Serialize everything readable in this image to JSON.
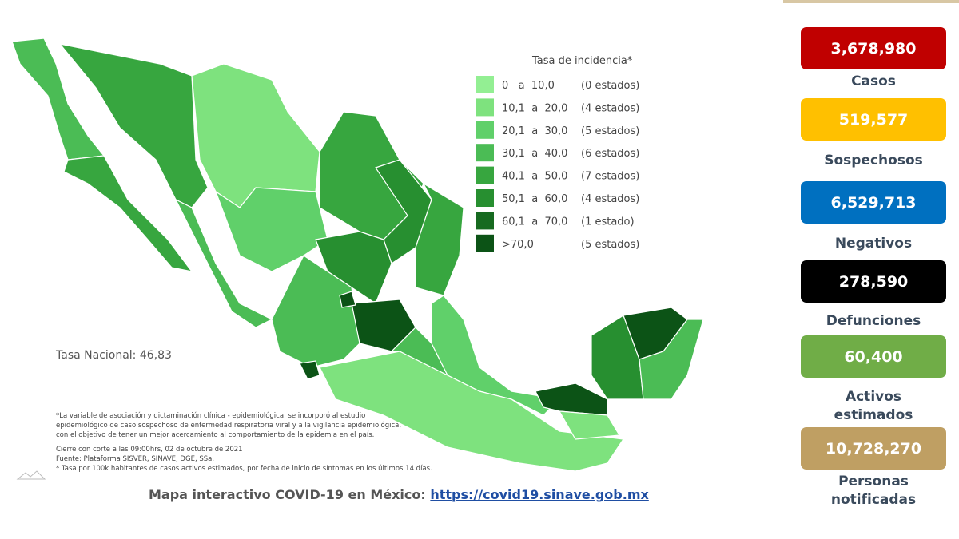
{
  "map": {
    "legend": {
      "title": "Tasa de incidencia*",
      "items": [
        {
          "range": "0   a  10,0",
          "count": "(0 estados)",
          "color": "#93ef93"
        },
        {
          "range": "10,1  a  20,0",
          "count": "(4 estados)",
          "color": "#7ee27e"
        },
        {
          "range": "20,1  a  30,0",
          "count": "(5 estados)",
          "color": "#60d06a"
        },
        {
          "range": "30,1  a  40,0",
          "count": "(6 estados)",
          "color": "#4bbc55"
        },
        {
          "range": "40,1  a  50,0",
          "count": "(7 estados)",
          "color": "#37a63f"
        },
        {
          "range": "50,1  a  60,0",
          "count": "(4 estados)",
          "color": "#278f30"
        },
        {
          "range": "60,1  a  70,0",
          "count": "(1 estado)",
          "color": "#176a20"
        },
        {
          "range": ">70,0",
          "count": "(5 estados)",
          "color": "#0c5316"
        }
      ]
    },
    "national_rate": "Tasa Nacional: 46,83",
    "notes": [
      "*La variable de asociación y dictaminación clínica - epidemiológica, se incorporó al estudio",
      "epidemiológico de caso sospechoso de enfermedad respiratoria viral y a la vigilancia epidemiológica,",
      "con el objetivo de tener un mejor acercamiento al comportamiento de la epidemia en el país.",
      "Cierre con corte a las 09:00hrs, 02 de octubre de 2021",
      "Fuente: Plataforma SISVER, SINAVE, DGE, SSa.",
      "* Tasa por 100k habitantes de casos activos estimados, por fecha de inicio de síntomas en los últimos 14 días."
    ],
    "footer": {
      "text": "Mapa interactivo COVID-19 en México:",
      "link": "https://covid19.sinave.gob.mx"
    }
  },
  "cards": [
    {
      "value": "3,678,980",
      "label": [
        "Casos"
      ],
      "color": "#c00000",
      "text_color": "#ffffff"
    },
    {
      "value": "519,577",
      "label": [
        "Sospechosos"
      ],
      "color": "#ffc000",
      "text_color": "#ffffff"
    },
    {
      "value": "6,529,713",
      "label": [
        "Negativos"
      ],
      "color": "#0070c0",
      "text_color": "#ffffff"
    },
    {
      "value": "278,590",
      "label": [
        "Defunciones"
      ],
      "color": "#000000",
      "text_color": "#ffffff"
    },
    {
      "value": "60,400",
      "label": [
        "Activos",
        "estimados"
      ],
      "color": "#70ad47",
      "text_color": "#ffffff"
    },
    {
      "value": "10,728,270",
      "label": [
        "Personas",
        "notificadas"
      ],
      "color": "#bf9f63",
      "text_color": "#ffffff"
    }
  ]
}
